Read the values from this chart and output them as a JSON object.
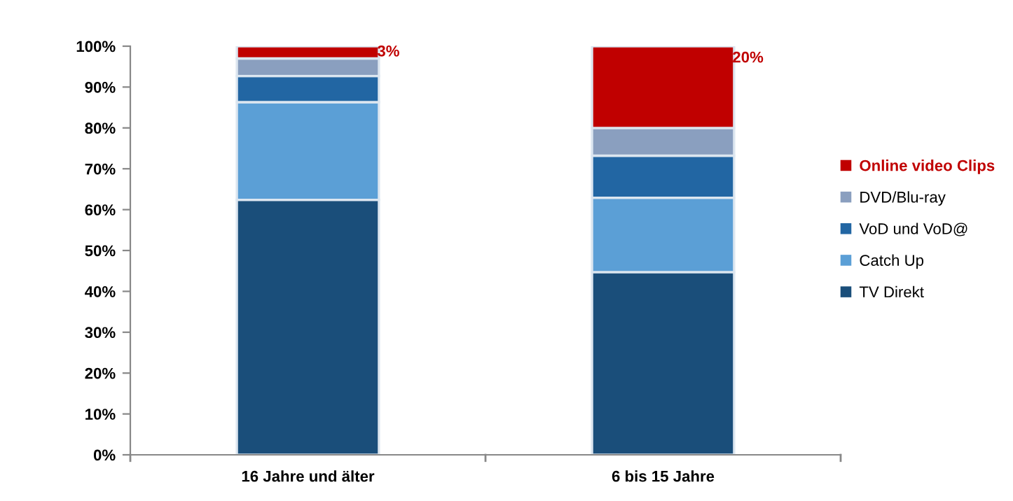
{
  "chart_data": {
    "type": "bar",
    "stacked": true,
    "categories": [
      "16 Jahre und älter",
      "6 bis 15 Jahre"
    ],
    "series": [
      {
        "name": "TV Direkt",
        "color": "#1a4e7a",
        "values": [
          62.4,
          44.7
        ]
      },
      {
        "name": "Catch Up",
        "color": "#5b9fd6",
        "values": [
          23.9,
          18.2
        ]
      },
      {
        "name": "VoD und VoD@",
        "color": "#2266a3",
        "values": [
          6.4,
          10.3
        ]
      },
      {
        "name": "DVD/Blu-ray",
        "color": "#8a9fbf",
        "values": [
          4.3,
          6.8
        ]
      },
      {
        "name": "Online video Clips",
        "color": "#c00000",
        "values": [
          3,
          20
        ],
        "value_labels": [
          "3%",
          "20%"
        ]
      }
    ],
    "ylim": [
      0,
      100
    ],
    "yticks": [
      {
        "value": 0,
        "label": "0%"
      },
      {
        "value": 10,
        "label": "10%"
      },
      {
        "value": 20,
        "label": "20%"
      },
      {
        "value": 30,
        "label": "30%"
      },
      {
        "value": 40,
        "label": "40%"
      },
      {
        "value": 50,
        "label": "50%"
      },
      {
        "value": 60,
        "label": "60%"
      },
      {
        "value": 70,
        "label": "70%"
      },
      {
        "value": 80,
        "label": "80%"
      },
      {
        "value": 90,
        "label": "90%"
      },
      {
        "value": 100,
        "label": "100%"
      }
    ],
    "grid": false,
    "legend": "right"
  }
}
